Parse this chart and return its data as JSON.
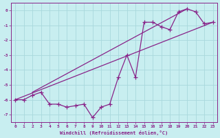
{
  "xlabel": "Windchill (Refroidissement éolien,°C)",
  "bg_color": "#c8eef0",
  "grid_color": "#b0d8dc",
  "line_color": "#882288",
  "xlim": [
    -0.5,
    23.5
  ],
  "ylim": [
    -7.5,
    0.5
  ],
  "xticks": [
    0,
    1,
    2,
    3,
    4,
    5,
    6,
    7,
    8,
    9,
    10,
    11,
    12,
    13,
    14,
    15,
    16,
    17,
    18,
    19,
    20,
    21,
    22,
    23
  ],
  "yticks": [
    0,
    -1,
    -2,
    -3,
    -4,
    -5,
    -6,
    -7
  ],
  "x_data": [
    0,
    1,
    2,
    3,
    4,
    5,
    6,
    7,
    8,
    9,
    10,
    11,
    12,
    13,
    14,
    15,
    16,
    17,
    18,
    19,
    20,
    21,
    22,
    23
  ],
  "y_data": [
    -6.0,
    -6.0,
    -5.7,
    -5.5,
    -6.3,
    -6.3,
    -6.5,
    -6.4,
    -6.3,
    -7.2,
    -6.5,
    -6.3,
    -4.5,
    -3.0,
    -4.5,
    -0.8,
    -0.8,
    -1.1,
    -1.3,
    -0.1,
    0.1,
    -0.1,
    -0.9,
    -0.8
  ],
  "env_line1_x": [
    2,
    20
  ],
  "env_line1_y": [
    -5.5,
    0.1
  ],
  "env_line2_x": [
    0,
    23
  ],
  "env_line2_y": [
    -6.0,
    -0.8
  ]
}
